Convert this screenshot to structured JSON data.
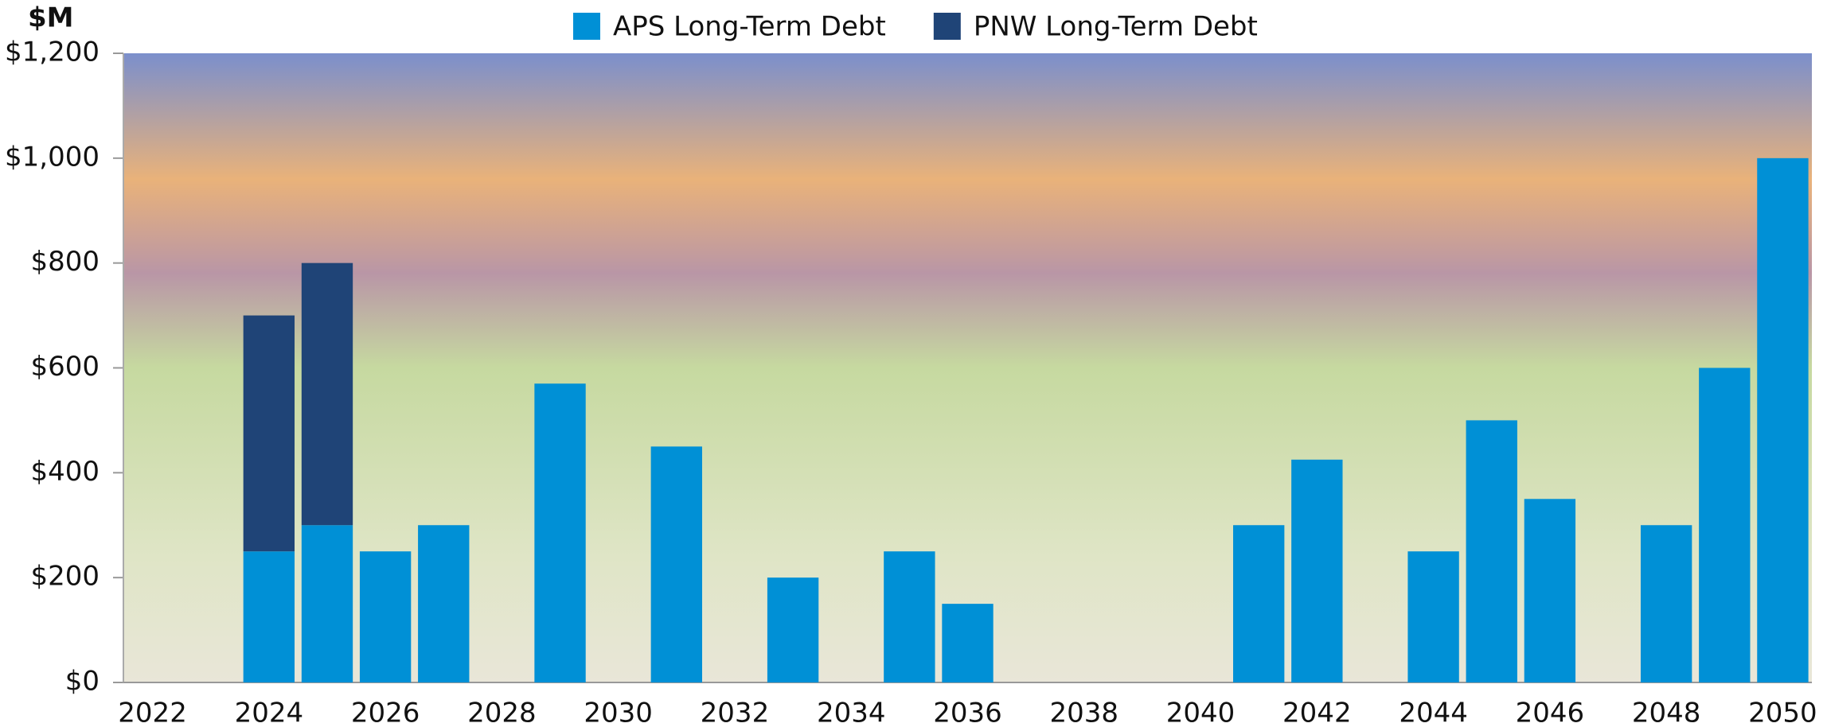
{
  "chart_data": {
    "type": "stacked_bar",
    "y_axis_label": "$M",
    "categories": [
      "2022",
      null,
      "2024",
      null,
      "2026",
      null,
      "2028",
      null,
      "2030",
      null,
      "2032",
      null,
      "2034",
      null,
      "2036",
      null,
      "2038",
      null,
      "2040",
      null,
      "2042",
      null,
      "2044",
      null,
      "2046",
      null,
      "2048",
      null,
      "2050"
    ],
    "series": [
      {
        "name": "APS Long-Term Debt",
        "color": "#0090d6",
        "values": [
          0,
          0,
          250,
          300,
          250,
          300,
          0,
          570,
          0,
          450,
          0,
          200,
          0,
          250,
          150,
          0,
          0,
          0,
          0,
          300,
          425,
          0,
          250,
          500,
          350,
          0,
          300,
          600,
          1000
        ]
      },
      {
        "name": "PNW Long-Term Debt",
        "color": "#1f4477",
        "values": [
          0,
          0,
          450,
          500,
          0,
          0,
          0,
          0,
          0,
          0,
          0,
          0,
          0,
          0,
          0,
          0,
          0,
          0,
          0,
          0,
          0,
          0,
          0,
          0,
          0,
          0,
          0,
          0,
          0
        ]
      }
    ],
    "ylim": [
      0,
      1200
    ],
    "yticks": [
      {
        "value": 0,
        "label": "$0"
      },
      {
        "value": 200,
        "label": "$200"
      },
      {
        "value": 400,
        "label": "$400"
      },
      {
        "value": 600,
        "label": "$600"
      },
      {
        "value": 800,
        "label": "$800"
      },
      {
        "value": 1000,
        "label": "$1,000"
      },
      {
        "value": 1200,
        "label": "$1,200"
      }
    ],
    "legend": "top"
  }
}
